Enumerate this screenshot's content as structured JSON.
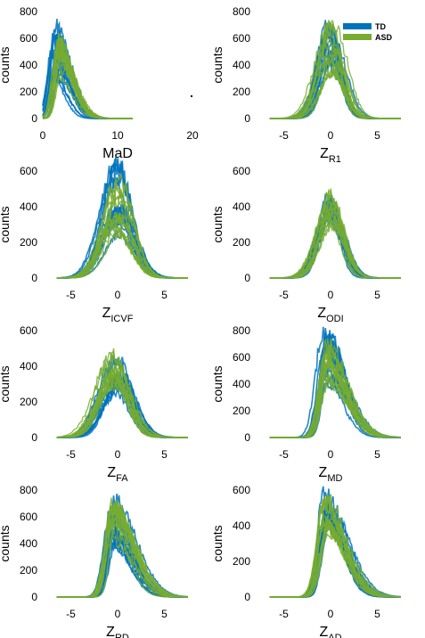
{
  "legend": {
    "items": [
      {
        "label": "TD",
        "color": "#0072BD"
      },
      {
        "label": "ASD",
        "color": "#77AC30"
      }
    ]
  },
  "chart_data": [
    {
      "type": "area",
      "id": "mad",
      "xlabel_main": "MaD",
      "xlabel_sub": "",
      "ylabel": "counts",
      "xlim": [
        0,
        20
      ],
      "ylim": [
        0,
        800
      ],
      "xticks": [
        0,
        10,
        20
      ],
      "yticks": [
        0,
        200,
        400,
        600,
        800
      ],
      "series": [
        {
          "name": "TD",
          "color": "#0072BD",
          "distribution": "right-skewed",
          "mode_x": 1.6,
          "peak_counts_range": [
            250,
            700
          ]
        },
        {
          "name": "ASD",
          "color": "#77AC30",
          "distribution": "right-skewed",
          "mode_x": 2.2,
          "peak_counts_range": [
            300,
            610
          ]
        }
      ]
    },
    {
      "type": "area",
      "id": "r1",
      "xlabel_main": "Z",
      "xlabel_sub": "R1",
      "ylabel": "counts",
      "xlim": [
        -8,
        8
      ],
      "ylim": [
        0,
        800
      ],
      "xticks": [
        -5,
        0,
        5
      ],
      "yticks": [
        0,
        200,
        400,
        600,
        800
      ],
      "series": [
        {
          "name": "TD",
          "color": "#0072BD",
          "distribution": "normal",
          "mode_x": 0,
          "peak_counts_range": [
            300,
            700
          ]
        },
        {
          "name": "ASD",
          "color": "#77AC30",
          "distribution": "normal",
          "mode_x": 0,
          "peak_counts_range": [
            300,
            730
          ]
        }
      ]
    },
    {
      "type": "area",
      "id": "icvf",
      "xlabel_main": "Z",
      "xlabel_sub": "ICVF",
      "ylabel": "counts",
      "xlim": [
        -8,
        8
      ],
      "ylim": [
        0,
        700
      ],
      "xticks": [
        -5,
        0,
        5
      ],
      "yticks": [
        0,
        200,
        400,
        600
      ],
      "series": [
        {
          "name": "TD",
          "color": "#0072BD",
          "distribution": "normal",
          "mode_x": 0,
          "peak_counts_range": [
            200,
            650
          ]
        },
        {
          "name": "ASD",
          "color": "#77AC30",
          "distribution": "normal",
          "mode_x": 0,
          "peak_counts_range": [
            200,
            600
          ]
        }
      ]
    },
    {
      "type": "area",
      "id": "odi",
      "xlabel_main": "Z",
      "xlabel_sub": "ODI",
      "ylabel": "counts",
      "xlim": [
        -8,
        8
      ],
      "ylim": [
        0,
        600
      ],
      "xticks": [
        -5,
        0,
        5
      ],
      "yticks": [
        0,
        200,
        400,
        600
      ],
      "series": [
        {
          "name": "TD",
          "color": "#0072BD",
          "distribution": "normal",
          "mode_x": 0,
          "peak_counts_range": [
            320,
            450
          ]
        },
        {
          "name": "ASD",
          "color": "#77AC30",
          "distribution": "normal",
          "mode_x": 0,
          "peak_counts_range": [
            300,
            470
          ]
        }
      ]
    },
    {
      "type": "area",
      "id": "fa",
      "xlabel_main": "Z",
      "xlabel_sub": "FA",
      "ylabel": "counts",
      "xlim": [
        -8,
        8
      ],
      "ylim": [
        0,
        600
      ],
      "xticks": [
        -5,
        0,
        5
      ],
      "yticks": [
        0,
        200,
        400,
        600
      ],
      "series": [
        {
          "name": "TD",
          "color": "#0072BD",
          "distribution": "normal",
          "mode_x": 0,
          "peak_counts_range": [
            250,
            480
          ]
        },
        {
          "name": "ASD",
          "color": "#77AC30",
          "distribution": "normal",
          "mode_x": -0.3,
          "peak_counts_range": [
            250,
            470
          ]
        }
      ]
    },
    {
      "type": "area",
      "id": "md",
      "xlabel_main": "Z",
      "xlabel_sub": "MD",
      "ylabel": "counts",
      "xlim": [
        -8,
        8
      ],
      "ylim": [
        0,
        800
      ],
      "xticks": [
        -5,
        0,
        5
      ],
      "yticks": [
        0,
        200,
        400,
        600,
        800
      ],
      "series": [
        {
          "name": "TD",
          "color": "#0072BD",
          "distribution": "right-skewed",
          "mode_x": -0.5,
          "peak_counts_range": [
            400,
            780
          ]
        },
        {
          "name": "ASD",
          "color": "#77AC30",
          "distribution": "right-skewed",
          "mode_x": -0.5,
          "peak_counts_range": [
            380,
            720
          ]
        }
      ]
    },
    {
      "type": "area",
      "id": "rd",
      "xlabel_main": "Z",
      "xlabel_sub": "RD",
      "ylabel": "counts",
      "xlim": [
        -8,
        8
      ],
      "ylim": [
        0,
        800
      ],
      "xticks": [
        -5,
        0,
        5
      ],
      "yticks": [
        0,
        200,
        400,
        600,
        800
      ],
      "series": [
        {
          "name": "TD",
          "color": "#0072BD",
          "distribution": "right-skewed",
          "mode_x": -0.5,
          "peak_counts_range": [
            380,
            720
          ]
        },
        {
          "name": "ASD",
          "color": "#77AC30",
          "distribution": "right-skewed",
          "mode_x": -0.5,
          "peak_counts_range": [
            380,
            690
          ]
        }
      ]
    },
    {
      "type": "area",
      "id": "ad",
      "xlabel_main": "Z",
      "xlabel_sub": "AD",
      "ylabel": "counts",
      "xlim": [
        -8,
        8
      ],
      "ylim": [
        0,
        600
      ],
      "xticks": [
        -5,
        0,
        5
      ],
      "yticks": [
        0,
        200,
        400,
        600
      ],
      "series": [
        {
          "name": "TD",
          "color": "#0072BD",
          "distribution": "right-skewed",
          "mode_x": -0.5,
          "peak_counts_range": [
            380,
            590
          ]
        },
        {
          "name": "ASD",
          "color": "#77AC30",
          "distribution": "right-skewed",
          "mode_x": -0.5,
          "peak_counts_range": [
            360,
            560
          ]
        }
      ]
    }
  ]
}
